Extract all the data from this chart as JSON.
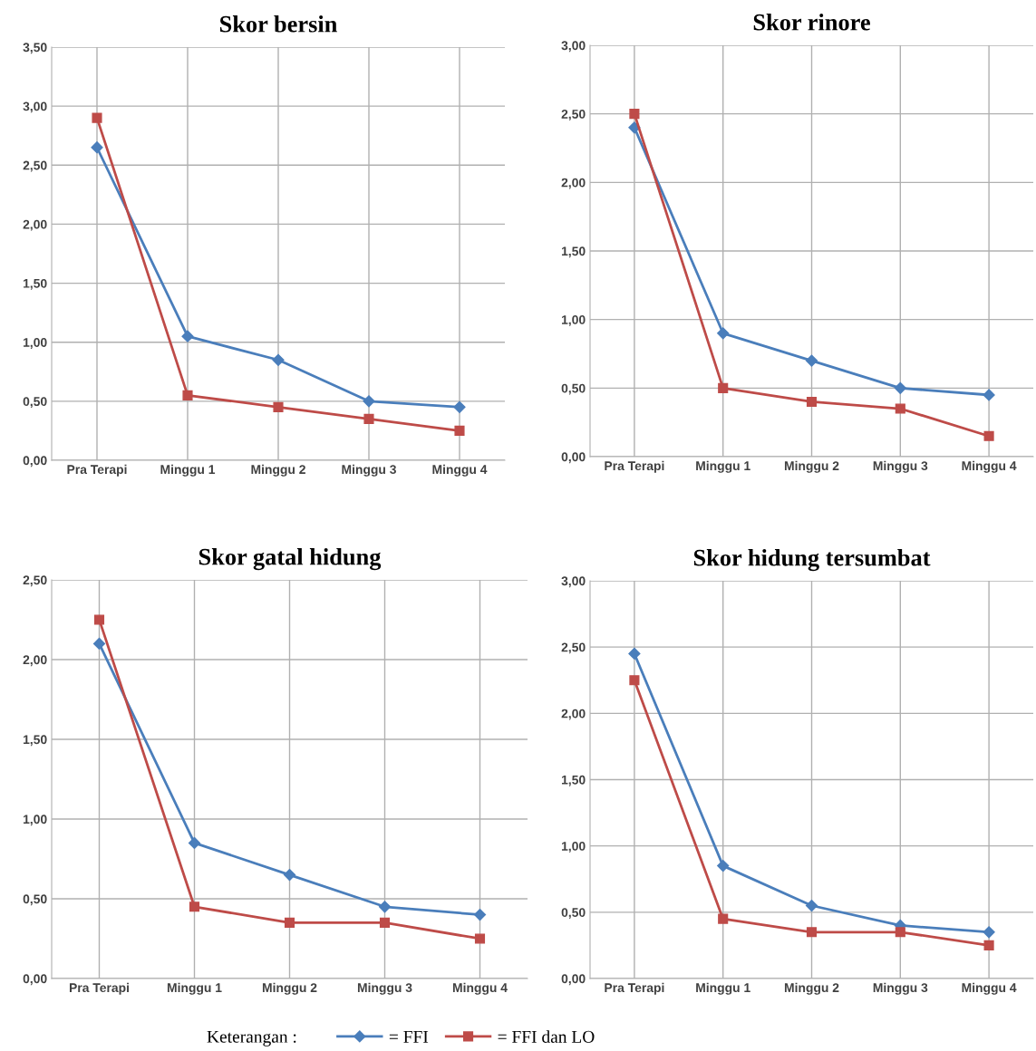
{
  "chart_data": [
    {
      "type": "line",
      "title": "Skor bersin",
      "categories": [
        "Pra Terapi",
        "Minggu 1",
        "Minggu 2",
        "Minggu 3",
        "Minggu 4"
      ],
      "ylim": [
        0,
        3.5
      ],
      "yticks": [
        {
          "value": 0,
          "label": "0,00"
        },
        {
          "value": 0.5,
          "label": "0,50"
        },
        {
          "value": 1,
          "label": "1,00"
        },
        {
          "value": 1.5,
          "label": "1,50"
        },
        {
          "value": 2,
          "label": "2,00"
        },
        {
          "value": 2.5,
          "label": "2,50"
        },
        {
          "value": 3,
          "label": "3,00"
        },
        {
          "value": 3.5,
          "label": "3,50"
        }
      ],
      "grid": true,
      "series": [
        {
          "color": "#4a7ebb",
          "marker": "diamond",
          "values": [
            2.65,
            1.05,
            0.85,
            0.5,
            0.45
          ]
        },
        {
          "color": "#be4b48",
          "marker": "square",
          "values": [
            2.9,
            0.55,
            0.45,
            0.35,
            0.25
          ]
        }
      ]
    },
    {
      "type": "line",
      "title": "Skor rinore",
      "categories": [
        "Pra Terapi",
        "Minggu 1",
        "Minggu 2",
        "Minggu 3",
        "Minggu 4"
      ],
      "ylim": [
        0,
        3
      ],
      "yticks": [
        {
          "value": 0,
          "label": "0,00"
        },
        {
          "value": 0.5,
          "label": "0,50"
        },
        {
          "value": 1,
          "label": "1,00"
        },
        {
          "value": 1.5,
          "label": "1,50"
        },
        {
          "value": 2,
          "label": "2,00"
        },
        {
          "value": 2.5,
          "label": "2,50"
        },
        {
          "value": 3,
          "label": "3,00"
        }
      ],
      "grid": true,
      "series": [
        {
          "color": "#4a7ebb",
          "marker": "diamond",
          "values": [
            2.4,
            0.9,
            0.7,
            0.5,
            0.45
          ]
        },
        {
          "color": "#be4b48",
          "marker": "square",
          "values": [
            2.5,
            0.5,
            0.4,
            0.35,
            0.15
          ]
        }
      ]
    },
    {
      "type": "line",
      "title": "Skor gatal hidung",
      "categories": [
        "Pra Terapi",
        "Minggu 1",
        "Minggu 2",
        "Minggu 3",
        "Minggu 4"
      ],
      "ylim": [
        0,
        2.5
      ],
      "yticks": [
        {
          "value": 0,
          "label": "0,00"
        },
        {
          "value": 0.5,
          "label": "0,50"
        },
        {
          "value": 1,
          "label": "1,00"
        },
        {
          "value": 1.5,
          "label": "1,50"
        },
        {
          "value": 2,
          "label": "2,00"
        },
        {
          "value": 2.5,
          "label": "2,50"
        }
      ],
      "grid": true,
      "legend": "bottom",
      "legend_title": "Keterangan :",
      "series": [
        {
          "name": "= FFI",
          "color": "#4a7ebb",
          "marker": "diamond",
          "values": [
            2.1,
            0.85,
            0.65,
            0.45,
            0.4
          ]
        },
        {
          "name": "= FFI dan LO",
          "color": "#be4b48",
          "marker": "square",
          "values": [
            2.25,
            0.45,
            0.35,
            0.35,
            0.25
          ]
        }
      ]
    },
    {
      "type": "line",
      "title": "Skor hidung tersumbat",
      "categories": [
        "Pra Terapi",
        "Minggu 1",
        "Minggu 2",
        "Minggu 3",
        "Minggu 4"
      ],
      "ylim": [
        0,
        3
      ],
      "yticks": [
        {
          "value": 0,
          "label": "0,00"
        },
        {
          "value": 0.5,
          "label": "0,50"
        },
        {
          "value": 1,
          "label": "1,00"
        },
        {
          "value": 1.5,
          "label": "1,50"
        },
        {
          "value": 2,
          "label": "2,00"
        },
        {
          "value": 2.5,
          "label": "2,50"
        },
        {
          "value": 3,
          "label": "3,00"
        }
      ],
      "grid": true,
      "series": [
        {
          "color": "#4a7ebb",
          "marker": "diamond",
          "values": [
            2.45,
            0.85,
            0.55,
            0.4,
            0.35
          ]
        },
        {
          "color": "#be4b48",
          "marker": "square",
          "values": [
            2.25,
            0.45,
            0.35,
            0.35,
            0.25
          ]
        }
      ]
    }
  ]
}
